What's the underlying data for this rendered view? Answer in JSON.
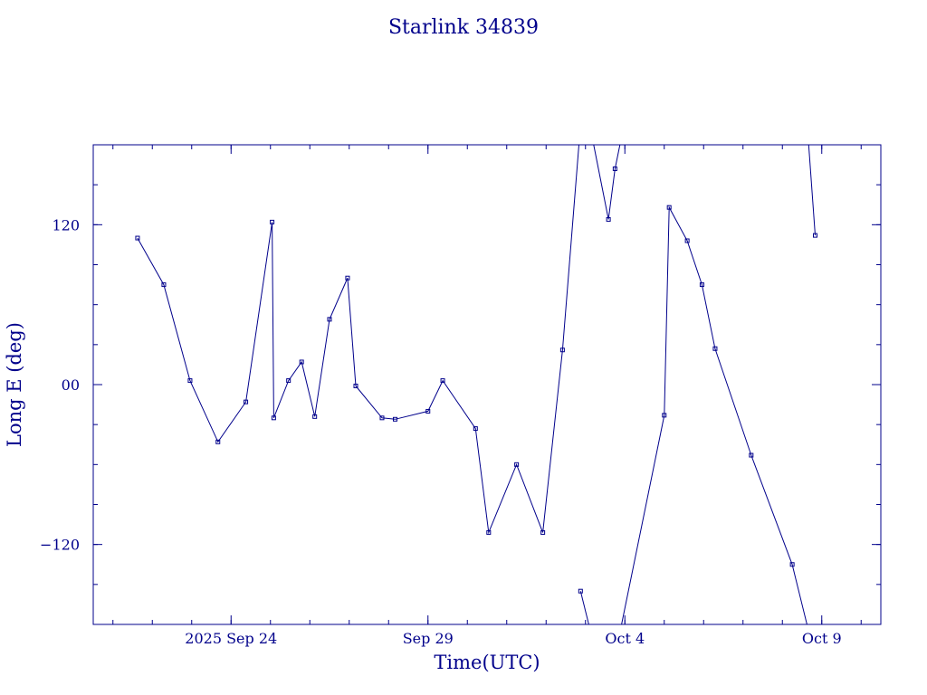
{
  "chart_data": {
    "type": "line",
    "title": "Starlink 34839",
    "xlabel": "Time(UTC)",
    "ylabel": "Long E (deg)",
    "x_axis": {
      "kind": "date",
      "range": [
        "2025-09-20T12:00",
        "2025-10-10T12:00"
      ],
      "tick_labels": [
        {
          "date": "2025-09-24",
          "label": "2025 Sep 24"
        },
        {
          "date": "2025-09-29",
          "label": "Sep 29"
        },
        {
          "date": "2025-10-04",
          "label": "Oct  4"
        },
        {
          "date": "2025-10-09",
          "label": "Oct  9"
        }
      ]
    },
    "y_axis": {
      "range": [
        -180,
        180
      ],
      "tick_labels": [
        {
          "value": 120,
          "label": "120"
        },
        {
          "value": 0,
          "label": "00"
        },
        {
          "value": -120,
          "label": "−120"
        }
      ]
    },
    "grid": false,
    "color": "#00008b",
    "series": [
      {
        "points": [
          {
            "x": "2025-09-21T15:00",
            "y": 110
          },
          {
            "x": "2025-09-22T07:00",
            "y": 75
          },
          {
            "x": "2025-09-22T23:00",
            "y": 3
          },
          {
            "x": "2025-09-23T16:00",
            "y": -43
          },
          {
            "x": "2025-09-24T09:00",
            "y": -13
          },
          {
            "x": "2025-09-25T01:00",
            "y": 122
          },
          {
            "x": "2025-09-25T02:00",
            "y": -25
          },
          {
            "x": "2025-09-25T11:00",
            "y": 3
          },
          {
            "x": "2025-09-25T19:00",
            "y": 17
          },
          {
            "x": "2025-09-26T03:00",
            "y": -24
          },
          {
            "x": "2025-09-26T12:00",
            "y": 49
          },
          {
            "x": "2025-09-26T23:00",
            "y": 80
          },
          {
            "x": "2025-09-27T04:00",
            "y": -1
          },
          {
            "x": "2025-09-27T20:00",
            "y": -25
          },
          {
            "x": "2025-09-28T04:00",
            "y": -26
          },
          {
            "x": "2025-09-29T00:00",
            "y": -20
          },
          {
            "x": "2025-09-29T09:00",
            "y": 3
          },
          {
            "x": "2025-09-30T05:00",
            "y": -33
          },
          {
            "x": "2025-09-30T13:00",
            "y": -111
          },
          {
            "x": "2025-10-01T06:00",
            "y": -60
          },
          {
            "x": "2025-10-01T22:00",
            "y": -111
          },
          {
            "x": "2025-10-02T10:00",
            "y": 26
          },
          {
            "x": "2025-10-02T20:00",
            "y": 180,
            "break_after": true
          },
          {
            "x": "2025-10-02T21:00",
            "y": -155
          },
          {
            "x": "2025-10-03T02:00",
            "y": -180,
            "break_after": true
          },
          {
            "x": "2025-10-03T05:00",
            "y": 180
          },
          {
            "x": "2025-10-03T14:00",
            "y": 124
          },
          {
            "x": "2025-10-03T18:00",
            "y": 162
          },
          {
            "x": "2025-10-03T21:00",
            "y": 180,
            "break_after": true
          },
          {
            "x": "2025-10-03T22:00",
            "y": -180
          },
          {
            "x": "2025-10-05T00:00",
            "y": -23
          },
          {
            "x": "2025-10-05T03:00",
            "y": 133
          },
          {
            "x": "2025-10-05T14:00",
            "y": 108
          },
          {
            "x": "2025-10-05T23:00",
            "y": 75
          },
          {
            "x": "2025-10-06T07:00",
            "y": 27
          },
          {
            "x": "2025-10-07T05:00",
            "y": -53
          },
          {
            "x": "2025-10-08T06:00",
            "y": -135
          },
          {
            "x": "2025-10-08T15:00",
            "y": -180,
            "break_after": true
          },
          {
            "x": "2025-10-08T16:00",
            "y": 180
          },
          {
            "x": "2025-10-08T20:00",
            "y": 112
          }
        ]
      }
    ]
  }
}
